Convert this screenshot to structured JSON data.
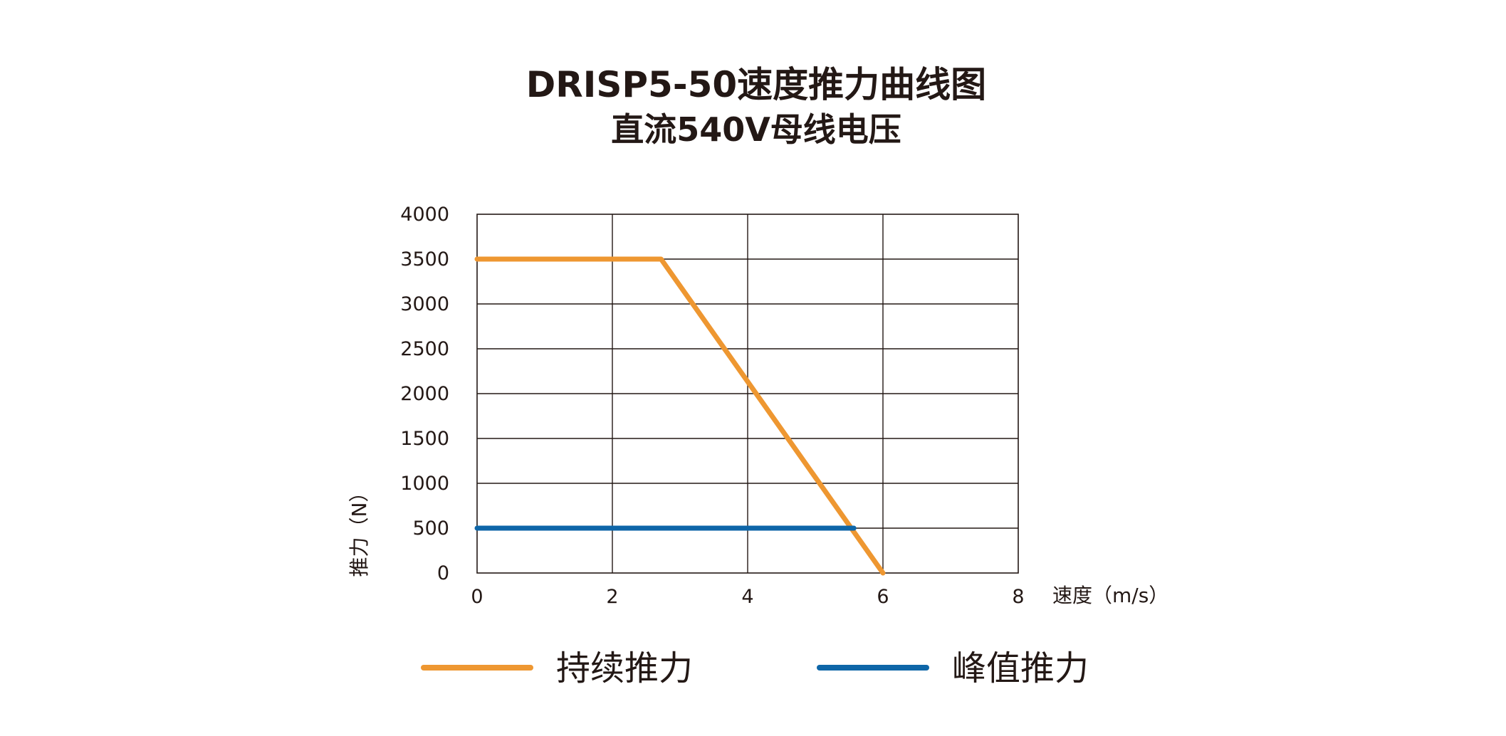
{
  "chart_data": {
    "type": "line",
    "title": "DRISP5-50速度推力曲线图",
    "subtitle": "直流540V母线电压",
    "xlabel": "速度（m/s）",
    "ylabel": "推力（N）",
    "xlim": [
      0,
      8
    ],
    "ylim": [
      0,
      4000
    ],
    "x_ticks": [
      "0",
      "2",
      "4",
      "6",
      "8"
    ],
    "y_ticks": [
      "0",
      "500",
      "1000",
      "1500",
      "2000",
      "2500",
      "3000",
      "3500",
      "4000"
    ],
    "grid": true,
    "legend_position": "bottom",
    "series": [
      {
        "name": "持续推力",
        "color": "#EE9731",
        "points": [
          [
            0,
            3500
          ],
          [
            2.72,
            3500
          ],
          [
            6.0,
            0
          ]
        ]
      },
      {
        "name": "峰值推力",
        "color": "#0E66A8",
        "points": [
          [
            0,
            500
          ],
          [
            5.57,
            500
          ]
        ]
      }
    ]
  }
}
